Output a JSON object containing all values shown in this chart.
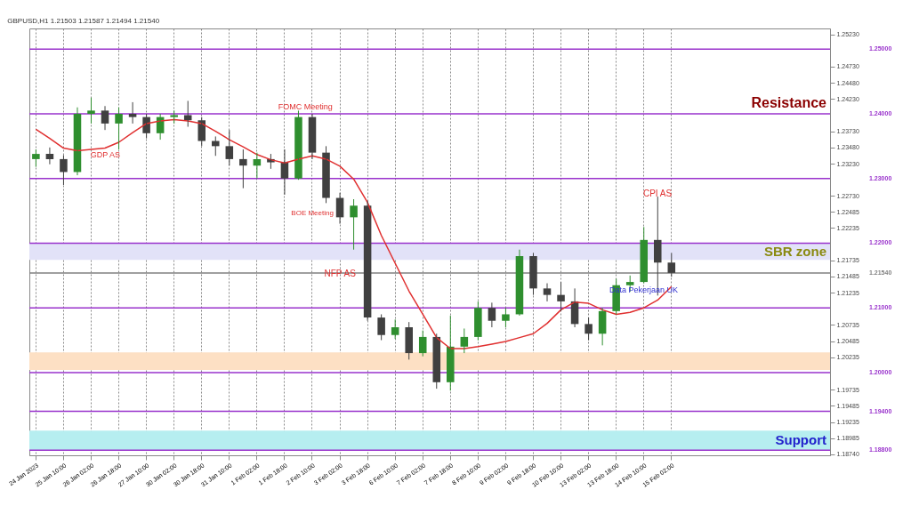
{
  "chart_data": {
    "type": "candlestick",
    "title": "GBPUSD,H1 1.21503 1.21587 1.21494 1.21540",
    "categories": [
      "24 Jan 2023",
      null,
      "25 Jan 10:00",
      null,
      "26 Jan 02:00",
      null,
      "26 Jan 18:00",
      null,
      "27 Jan 10:00",
      null,
      "30 Jan 02:00",
      null,
      "30 Jan 18:00",
      null,
      "31 Jan 10:00",
      null,
      "1 Feb 02:00",
      null,
      "1 Feb 18:00",
      null,
      "2 Feb 10:00",
      null,
      "3 Feb 02:00",
      null,
      "3 Feb 18:00",
      null,
      "6 Feb 10:00",
      null,
      "7 Feb 02:00",
      null,
      "7 Feb 18:00",
      null,
      "8 Feb 10:00",
      null,
      "9 Feb 02:00",
      null,
      "9 Feb 18:00",
      null,
      "10 Feb 10:00",
      null,
      "13 Feb 02:00",
      null,
      "13 Feb 18:00",
      null,
      "14 Feb 10:00",
      null,
      "15 Feb 02:00",
      null,
      null,
      null,
      null,
      null,
      null,
      null,
      null,
      null,
      null,
      null
    ],
    "ohlc": [
      [
        1.233,
        1.2345,
        1.2318,
        1.2338
      ],
      [
        1.2338,
        1.2348,
        1.2322,
        1.233
      ],
      [
        1.233,
        1.2336,
        1.229,
        1.231
      ],
      [
        1.231,
        1.241,
        1.2305,
        1.24
      ],
      [
        1.24,
        1.2425,
        1.2385,
        1.2405
      ],
      [
        1.2405,
        1.2412,
        1.2375,
        1.2385
      ],
      [
        1.2385,
        1.241,
        1.2345,
        1.24
      ],
      [
        1.24,
        1.2418,
        1.2385,
        1.2395
      ],
      [
        1.2395,
        1.24,
        1.2362,
        1.237
      ],
      [
        1.237,
        1.24,
        1.236,
        1.2395
      ],
      [
        1.2395,
        1.2405,
        1.2385,
        1.2398
      ],
      [
        1.2398,
        1.242,
        1.238,
        1.239
      ],
      [
        1.239,
        1.2395,
        1.235,
        1.2358
      ],
      [
        1.2358,
        1.2365,
        1.2335,
        1.235
      ],
      [
        1.235,
        1.2375,
        1.232,
        1.233
      ],
      [
        1.233,
        1.2345,
        1.2285,
        1.232
      ],
      [
        1.232,
        1.234,
        1.23,
        1.233
      ],
      [
        1.233,
        1.2338,
        1.2315,
        1.2325
      ],
      [
        1.2325,
        1.2345,
        1.2275,
        1.23
      ],
      [
        1.23,
        1.2405,
        1.2298,
        1.2395
      ],
      [
        1.2395,
        1.24,
        1.233,
        1.234
      ],
      [
        1.234,
        1.235,
        1.2262,
        1.227
      ],
      [
        1.227,
        1.2278,
        1.223,
        1.224
      ],
      [
        1.224,
        1.2268,
        1.219,
        1.2258
      ],
      [
        1.2258,
        1.2265,
        1.208,
        1.2085
      ],
      [
        1.2085,
        1.209,
        1.205,
        1.2058
      ],
      [
        1.2058,
        1.2082,
        1.2052,
        1.207
      ],
      [
        1.207,
        1.2078,
        1.202,
        1.203
      ],
      [
        1.203,
        1.2065,
        1.2025,
        1.2055
      ],
      [
        1.2055,
        1.206,
        1.1975,
        1.1985
      ],
      [
        1.1985,
        1.2088,
        1.1972,
        1.204
      ],
      [
        1.204,
        1.2068,
        1.203,
        1.2055
      ],
      [
        1.2055,
        1.211,
        1.205,
        1.21
      ],
      [
        1.21,
        1.2108,
        1.207,
        1.208
      ],
      [
        1.208,
        1.21,
        1.207,
        1.209
      ],
      [
        1.209,
        1.219,
        1.2088,
        1.218
      ],
      [
        1.218,
        1.2185,
        1.212,
        1.213
      ],
      [
        1.213,
        1.2138,
        1.211,
        1.212
      ],
      [
        1.212,
        1.214,
        1.2095,
        1.211
      ],
      [
        1.211,
        1.213,
        1.207,
        1.2075
      ],
      [
        1.2075,
        1.2085,
        1.205,
        1.206
      ],
      [
        1.206,
        1.21,
        1.2042,
        1.2095
      ],
      [
        1.2095,
        1.2145,
        1.209,
        1.2135
      ],
      [
        1.2135,
        1.215,
        1.2125,
        1.214
      ],
      [
        1.214,
        1.2225,
        1.2138,
        1.2205
      ],
      [
        1.2205,
        1.2272,
        1.2119,
        1.217
      ],
      [
        1.217,
        1.2185,
        1.2148,
        1.2154
      ],
      null,
      null,
      null,
      null,
      null,
      null,
      null,
      null,
      null,
      null,
      null
    ],
    "colors": [
      "#2f8f2f",
      "#404040",
      "#404040",
      "#2f8f2f",
      "#2f8f2f",
      "#404040",
      "#2f8f2f",
      "#404040",
      "#404040",
      "#2f8f2f",
      "#2f8f2f",
      "#404040",
      "#404040",
      "#404040",
      "#404040",
      "#404040",
      "#2f8f2f",
      "#404040",
      "#404040",
      "#2f8f2f",
      "#404040",
      "#404040",
      "#404040",
      "#2f8f2f",
      "#404040",
      "#404040",
      "#2f8f2f",
      "#404040",
      "#2f8f2f",
      "#404040",
      "#2f8f2f",
      "#2f8f2f",
      "#2f8f2f",
      "#404040",
      "#2f8f2f",
      "#2f8f2f",
      "#404040",
      "#404040",
      "#404040",
      "#404040",
      "#404040",
      "#2f8f2f",
      "#2f8f2f",
      "#2f8f2f",
      "#2f8f2f",
      "#404040",
      "#404040",
      null,
      null,
      null,
      null,
      null,
      null,
      null,
      null,
      null,
      null,
      null
    ],
    "series": [
      {
        "type": "line",
        "color": "#e03030",
        "values": [
          1.2376,
          1.2362,
          1.2347,
          1.2343,
          1.2345,
          1.2347,
          1.2356,
          1.2371,
          1.2385,
          1.2389,
          1.2391,
          1.2389,
          1.2385,
          1.2373,
          1.236,
          1.2349,
          1.2337,
          1.2329,
          1.2324,
          1.233,
          1.2335,
          1.233,
          1.2319,
          1.2299,
          1.2263,
          1.2212,
          1.2169,
          1.2126,
          1.209,
          1.2054,
          1.2037,
          1.2037,
          1.204,
          1.2044,
          1.2048,
          1.2054,
          1.206,
          1.2076,
          1.2097,
          1.2109,
          1.2107,
          1.2097,
          1.209,
          1.2093,
          1.21,
          1.2112,
          1.2133,
          null,
          null,
          null,
          null,
          null,
          null,
          null,
          null,
          null,
          null,
          null
        ]
      }
    ],
    "ylim": [
      1.1872,
      1.2532
    ],
    "yticks": [
      {
        "value": 1.2523,
        "label": "1.25230"
      },
      {
        "value": 1.2473,
        "label": "1.24730"
      },
      {
        "value": 1.2448,
        "label": "1.24480"
      },
      {
        "value": 1.2423,
        "label": "1.24230"
      },
      {
        "value": 1.2373,
        "label": "1.23730"
      },
      {
        "value": 1.2348,
        "label": "1.23480"
      },
      {
        "value": 1.2323,
        "label": "1.23230"
      },
      {
        "value": 1.2273,
        "label": "1.22730"
      },
      {
        "value": 1.22485,
        "label": "1.22485"
      },
      {
        "value": 1.22235,
        "label": "1.22235"
      },
      {
        "value": 1.21735,
        "label": "1.21735"
      },
      {
        "value": 1.21485,
        "label": "1.21485"
      },
      {
        "value": 1.21235,
        "label": "1.21235"
      },
      {
        "value": 1.20735,
        "label": "1.20735"
      },
      {
        "value": 1.20485,
        "label": "1.20485"
      },
      {
        "value": 1.20235,
        "label": "1.20235"
      },
      {
        "value": 1.19735,
        "label": "1.19735"
      },
      {
        "value": 1.19485,
        "label": "1.19485"
      },
      {
        "value": 1.19235,
        "label": "1.19235"
      },
      {
        "value": 1.18985,
        "label": "1.18985"
      },
      {
        "value": 1.1874,
        "label": "1.18740"
      }
    ],
    "ref_lines": [
      {
        "axis": "y",
        "value": 1.25,
        "label": "1.25000",
        "color": "#9932cc"
      },
      {
        "axis": "y",
        "value": 1.24,
        "label": "1.24000",
        "color": "#9932cc"
      },
      {
        "axis": "y",
        "value": 1.23,
        "label": "1.23000",
        "color": "#9932cc"
      },
      {
        "axis": "y",
        "value": 1.22,
        "label": "1.22000",
        "color": "#9932cc"
      },
      {
        "axis": "y",
        "value": 1.2154,
        "label": "1.21540",
        "color": "#808080"
      },
      {
        "axis": "y",
        "value": 1.21,
        "label": "1.21000",
        "color": "#9932cc"
      },
      {
        "axis": "y",
        "value": 1.2,
        "label": "1.20000",
        "color": "#9932cc"
      },
      {
        "axis": "y",
        "value": 1.194,
        "label": "1.19400",
        "color": "#9932cc"
      },
      {
        "axis": "y",
        "value": 1.188,
        "label": "1.18800",
        "color": "#9932cc"
      }
    ],
    "bands": [
      {
        "axis": "y",
        "from": 1.2174,
        "to": 1.22,
        "label": "SBR zone",
        "color": "#e2e2f8"
      },
      {
        "axis": "y",
        "from": 1.2004,
        "to": 1.2031,
        "label": null,
        "color": "#fde0c4"
      },
      {
        "axis": "y",
        "from": 1.188,
        "to": 1.191,
        "label": "Support",
        "color": "#b6eef0"
      }
    ],
    "annotations": [
      "GDP AS",
      "FOMC Meeting",
      "BOE Meeting",
      "NFP AS",
      "CPI AS",
      "Data Pekerjaan UK",
      "Resistance"
    ],
    "grid": "x",
    "marker": "none"
  }
}
